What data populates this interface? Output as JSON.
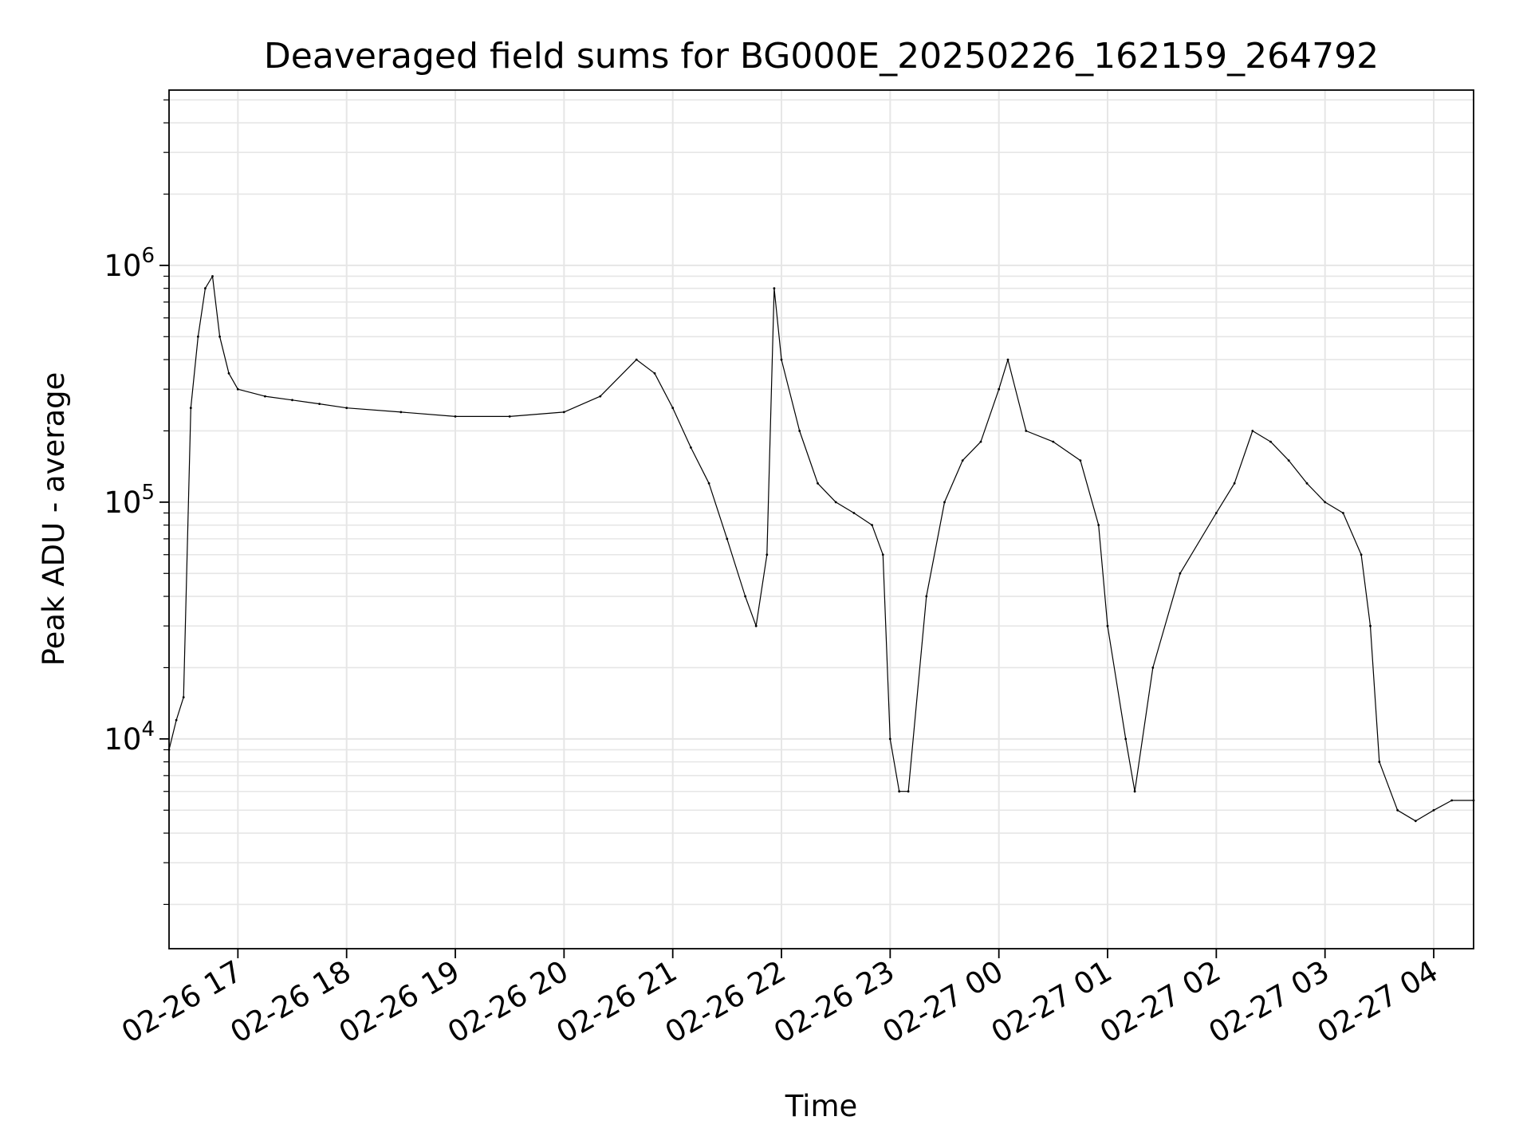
{
  "chart_data": {
    "type": "line",
    "title": "Deaveraged field sums for BG000E_20250226_162159_264792",
    "xlabel": "Time",
    "ylabel": "Peak ADU - average",
    "yscale": "log",
    "ylim": [
      1300,
      5500000
    ],
    "xlim": [
      "02-26 16:22",
      "02-27 04:22"
    ],
    "x_ticks": [
      "02-26 17",
      "02-26 18",
      "02-26 19",
      "02-26 20",
      "02-26 21",
      "02-26 22",
      "02-26 23",
      "02-27 00",
      "02-27 01",
      "02-27 02",
      "02-27 03",
      "02-27 04"
    ],
    "y_ticks": [
      {
        "base": "10",
        "exp": "4",
        "value": 10000
      },
      {
        "base": "10",
        "exp": "5",
        "value": 100000
      },
      {
        "base": "10",
        "exp": "6",
        "value": 1000000
      }
    ],
    "grid": true,
    "line_color": "#000000",
    "grid_color": "#e6e6e6",
    "series": [
      {
        "x": [
          "02-26 16:22",
          "02-26 16:26",
          "02-26 16:30",
          "02-26 16:34",
          "02-26 16:38",
          "02-26 16:42",
          "02-26 16:46",
          "02-26 16:50",
          "02-26 16:55",
          "02-26 17:00",
          "02-26 17:15",
          "02-26 17:30",
          "02-26 17:45",
          "02-26 18:00",
          "02-26 18:30",
          "02-26 19:00",
          "02-26 19:30",
          "02-26 20:00",
          "02-26 20:20",
          "02-26 20:40",
          "02-26 20:50",
          "02-26 21:00",
          "02-26 21:10",
          "02-26 21:20",
          "02-26 21:30",
          "02-26 21:40",
          "02-26 21:46",
          "02-26 21:52",
          "02-26 21:56",
          "02-26 22:00",
          "02-26 22:10",
          "02-26 22:20",
          "02-26 22:30",
          "02-26 22:40",
          "02-26 22:50",
          "02-26 22:56",
          "02-26 23:00",
          "02-26 23:05",
          "02-26 23:10",
          "02-26 23:20",
          "02-26 23:30",
          "02-26 23:40",
          "02-26 23:50",
          "02-27 00:00",
          "02-27 00:05",
          "02-27 00:15",
          "02-27 00:30",
          "02-27 00:45",
          "02-27 00:55",
          "02-27 01:00",
          "02-27 01:10",
          "02-27 01:15",
          "02-27 01:25",
          "02-27 01:40",
          "02-27 02:00",
          "02-27 02:10",
          "02-27 02:20",
          "02-27 02:30",
          "02-27 02:40",
          "02-27 02:50",
          "02-27 03:00",
          "02-27 03:10",
          "02-27 03:20",
          "02-27 03:25",
          "02-27 03:30",
          "02-27 03:40",
          "02-27 03:50",
          "02-27 04:00",
          "02-27 04:10",
          "02-27 04:22"
        ],
        "y": [
          9000,
          12000,
          15000,
          250000,
          500000,
          800000,
          900000,
          500000,
          350000,
          300000,
          280000,
          270000,
          260000,
          250000,
          240000,
          230000,
          230000,
          240000,
          280000,
          400000,
          350000,
          250000,
          170000,
          120000,
          70000,
          40000,
          30000,
          60000,
          800000,
          400000,
          200000,
          120000,
          100000,
          90000,
          80000,
          60000,
          10000,
          6000,
          6000,
          40000,
          100000,
          150000,
          180000,
          300000,
          400000,
          200000,
          180000,
          150000,
          80000,
          30000,
          10000,
          6000,
          20000,
          50000,
          90000,
          120000,
          200000,
          180000,
          150000,
          120000,
          100000,
          90000,
          60000,
          30000,
          8000,
          5000,
          4500,
          5000,
          5500,
          5500
        ]
      }
    ]
  }
}
